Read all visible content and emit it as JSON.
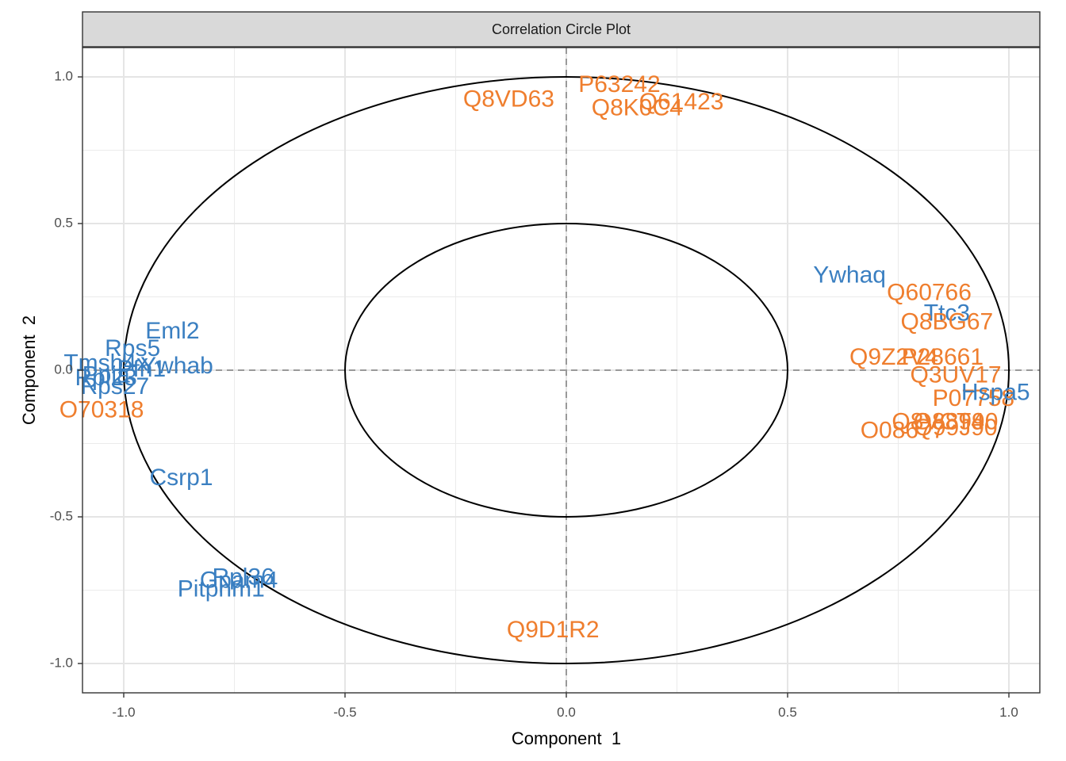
{
  "chart_data": {
    "type": "scatter",
    "title": "Correlation Circle Plot",
    "xlabel": "Component  1",
    "ylabel": "Component  2",
    "xlim": [
      -1.1,
      1.1
    ],
    "ylim": [
      -1.1,
      1.1
    ],
    "xticks": [
      -1.0,
      -0.5,
      0.0,
      0.5,
      1.0
    ],
    "xtick_labels": [
      "-1.0",
      "-0.5",
      "0.0",
      "0.5",
      "1.0"
    ],
    "yticks": [
      -1.0,
      -0.5,
      0.0,
      0.5,
      1.0
    ],
    "ytick_labels": [
      "-1.0",
      "-0.5",
      "0.0",
      "0.5",
      "1.0"
    ],
    "grid": true,
    "circles": [
      1.0,
      0.5
    ],
    "reference_lines": {
      "x": 0,
      "y": 0
    },
    "colors": {
      "blue": "#3a7fc1",
      "orange": "#ef7e2e"
    },
    "labels": [
      {
        "text": "P63242",
        "x": 0.12,
        "y": 0.97,
        "color": "orange"
      },
      {
        "text": "Q8VD63",
        "x": -0.13,
        "y": 0.92,
        "color": "orange"
      },
      {
        "text": "Q61423",
        "x": 0.26,
        "y": 0.91,
        "color": "orange"
      },
      {
        "text": "Q8K0C4",
        "x": 0.16,
        "y": 0.89,
        "color": "orange"
      },
      {
        "text": "Ywhaq",
        "x": 0.64,
        "y": 0.32,
        "color": "blue"
      },
      {
        "text": "Q60766",
        "x": 0.82,
        "y": 0.26,
        "color": "orange"
      },
      {
        "text": "Ttc3",
        "x": 0.86,
        "y": 0.19,
        "color": "blue"
      },
      {
        "text": "Q8BG67",
        "x": 0.86,
        "y": 0.16,
        "color": "orange"
      },
      {
        "text": "Q9Z2V4",
        "x": 0.74,
        "y": 0.04,
        "color": "orange"
      },
      {
        "text": "P28661",
        "x": 0.85,
        "y": 0.04,
        "color": "orange"
      },
      {
        "text": "Q3UV17",
        "x": 0.88,
        "y": -0.02,
        "color": "orange"
      },
      {
        "text": "P07758",
        "x": 0.92,
        "y": -0.1,
        "color": "orange"
      },
      {
        "text": "Hspa5",
        "x": 0.97,
        "y": -0.08,
        "color": "blue"
      },
      {
        "text": "Q8VCT4",
        "x": 0.84,
        "y": -0.18,
        "color": "orange"
      },
      {
        "text": "O88990",
        "x": 0.88,
        "y": -0.18,
        "color": "orange"
      },
      {
        "text": "Q99J90",
        "x": 0.88,
        "y": -0.2,
        "color": "orange"
      },
      {
        "text": "O08677",
        "x": 0.76,
        "y": -0.21,
        "color": "orange"
      },
      {
        "text": "Eml2",
        "x": -0.89,
        "y": 0.13,
        "color": "blue"
      },
      {
        "text": "Rps5",
        "x": -0.98,
        "y": 0.07,
        "color": "blue"
      },
      {
        "text": "Tmsb4x",
        "x": -1.04,
        "y": 0.02,
        "color": "blue"
      },
      {
        "text": "Pfn1",
        "x": -0.96,
        "y": 0.0,
        "color": "blue"
      },
      {
        "text": "Ywhab",
        "x": -0.88,
        "y": 0.01,
        "color": "blue"
      },
      {
        "text": "Ppia",
        "x": -1.04,
        "y": -0.02,
        "color": "blue"
      },
      {
        "text": "Rpl23",
        "x": -1.04,
        "y": -0.03,
        "color": "blue"
      },
      {
        "text": "Rps27",
        "x": -1.02,
        "y": -0.06,
        "color": "blue"
      },
      {
        "text": "O70318",
        "x": -1.05,
        "y": -0.14,
        "color": "orange"
      },
      {
        "text": "Csrp1",
        "x": -0.87,
        "y": -0.37,
        "color": "blue"
      },
      {
        "text": "Rpl36",
        "x": -0.73,
        "y": -0.71,
        "color": "blue"
      },
      {
        "text": "Gpam4",
        "x": -0.74,
        "y": -0.72,
        "color": "blue"
      },
      {
        "text": "Pitpnm1",
        "x": -0.78,
        "y": -0.75,
        "color": "blue"
      },
      {
        "text": "Q9D1R2",
        "x": -0.03,
        "y": -0.89,
        "color": "orange"
      }
    ]
  }
}
